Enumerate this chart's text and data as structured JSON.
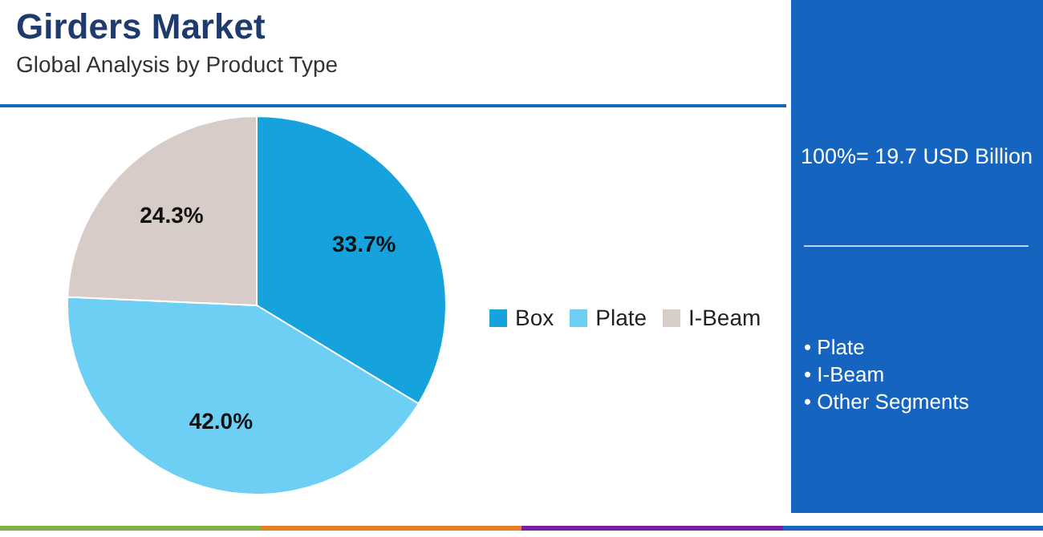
{
  "chart_data": {
    "type": "pie",
    "title": "Girders Market",
    "subtitle": "Global Analysis by Product Type",
    "categories": [
      "Box",
      "Plate",
      "I-Beam"
    ],
    "values": [
      33.7,
      42.0,
      24.3
    ],
    "colors": [
      "#16a3dd",
      "#6dcff4",
      "#d7ccc7"
    ],
    "value_labels": [
      "33.7%",
      "42.0%",
      "24.3%"
    ],
    "legend": "right",
    "annotations": [
      "100%= 19.7 USD Billion",
      "• Plate",
      "• I-Beam",
      "• Other Segments"
    ]
  }
}
